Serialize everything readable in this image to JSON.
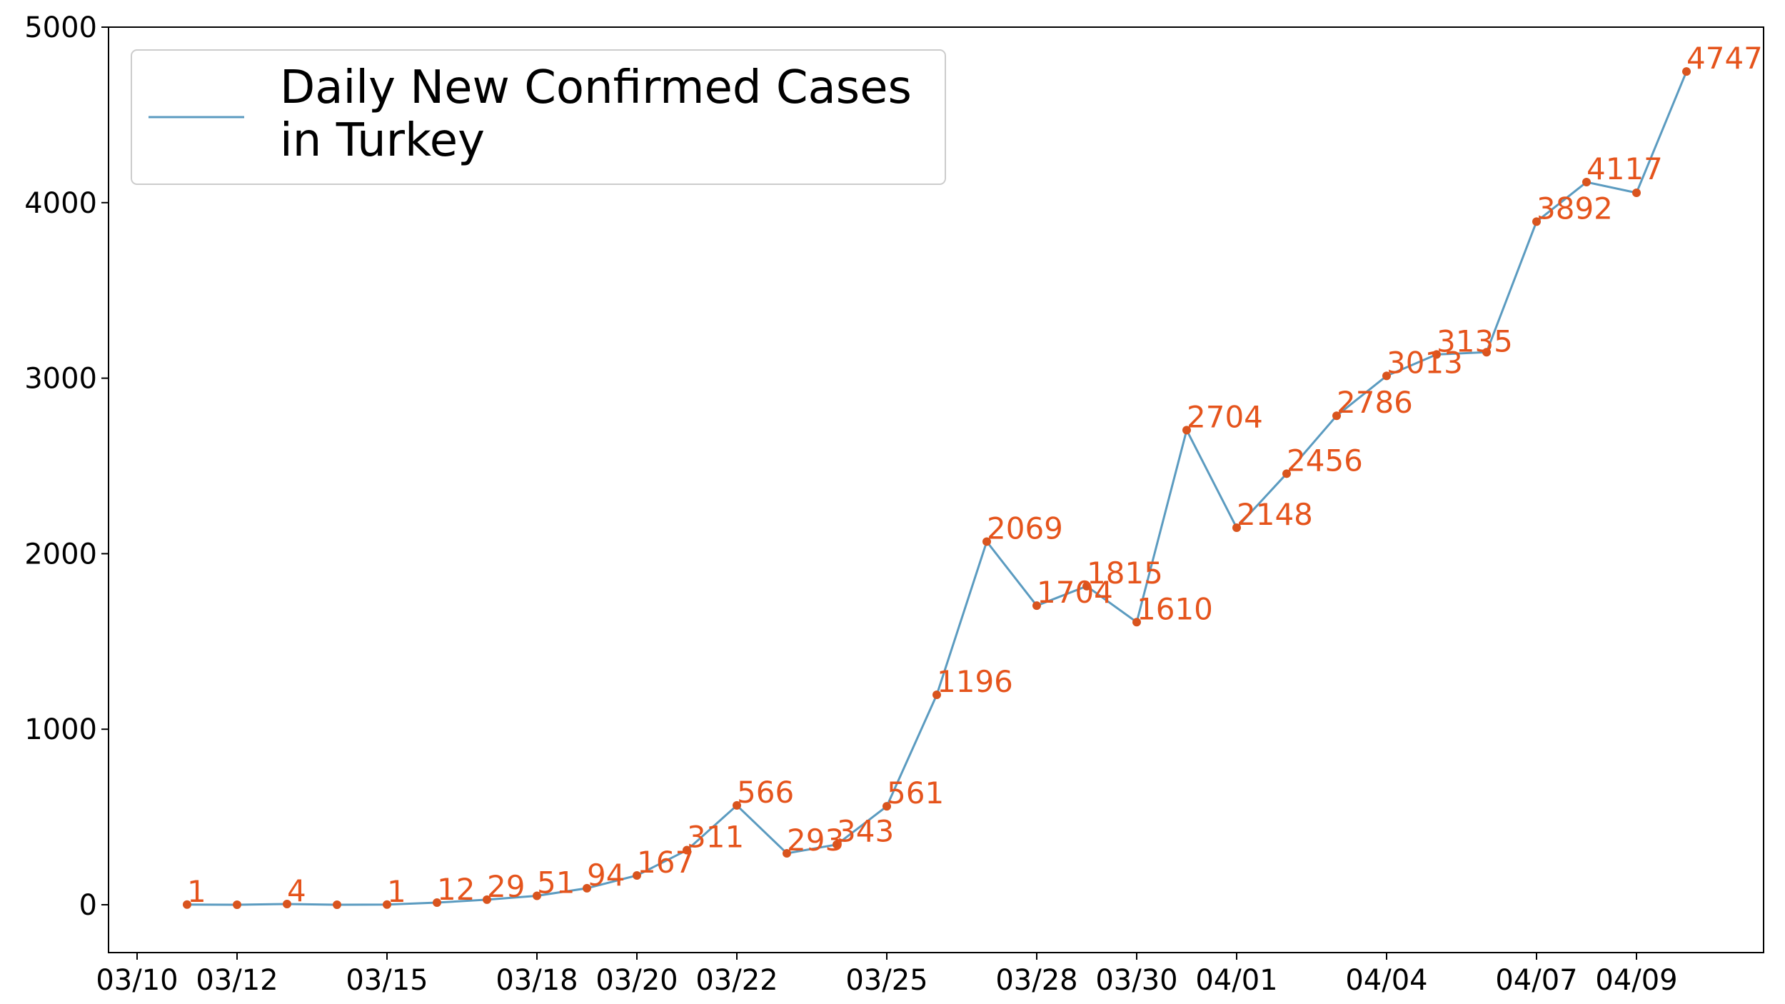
{
  "chart_data": {
    "type": "line",
    "x": [
      "03/11",
      "03/12",
      "03/13",
      "03/14",
      "03/15",
      "03/16",
      "03/17",
      "03/18",
      "03/19",
      "03/20",
      "03/21",
      "03/22",
      "03/23",
      "03/24",
      "03/25",
      "03/26",
      "03/27",
      "03/28",
      "03/29",
      "03/30",
      "03/31",
      "04/01",
      "04/02",
      "04/03",
      "04/04",
      "04/05",
      "04/06",
      "04/07",
      "04/08",
      "04/09",
      "04/10"
    ],
    "series": [
      {
        "name": "Daily New Confirmed Cases\n in Turkey",
        "values": [
          1,
          0,
          4,
          0,
          1,
          12,
          29,
          51,
          94,
          167,
          311,
          566,
          293,
          343,
          561,
          1196,
          2069,
          1704,
          1815,
          1610,
          2704,
          2148,
          2456,
          2786,
          3013,
          3135,
          3148,
          3892,
          4117,
          4056,
          4747
        ],
        "labels": [
          "1",
          "",
          "4",
          "",
          "1",
          "12",
          "29",
          "51",
          "94",
          "167",
          "311",
          "566",
          "293",
          "343",
          "561",
          "1196",
          "2069",
          "1704",
          "1815",
          "1610",
          "2704",
          "2148",
          "2456",
          "2786",
          "3013",
          "3135",
          "",
          "3892",
          "4117",
          "",
          "4747"
        ]
      }
    ],
    "xticks": [
      "03/10",
      "03/12",
      "03/15",
      "03/18",
      "03/20",
      "03/22",
      "03/25",
      "03/28",
      "03/30",
      "04/01",
      "04/04",
      "04/07",
      "04/09"
    ],
    "yticks": [
      "0",
      "1000",
      "2000",
      "3000",
      "4000",
      "5000"
    ],
    "ylim": [
      -250,
      5000
    ],
    "legend": "top-left",
    "grid": false,
    "colors": {
      "line": "#5b9bc0",
      "marker": "#d9541e",
      "label": "#e5541c",
      "legend_border": "#cccccc"
    }
  }
}
